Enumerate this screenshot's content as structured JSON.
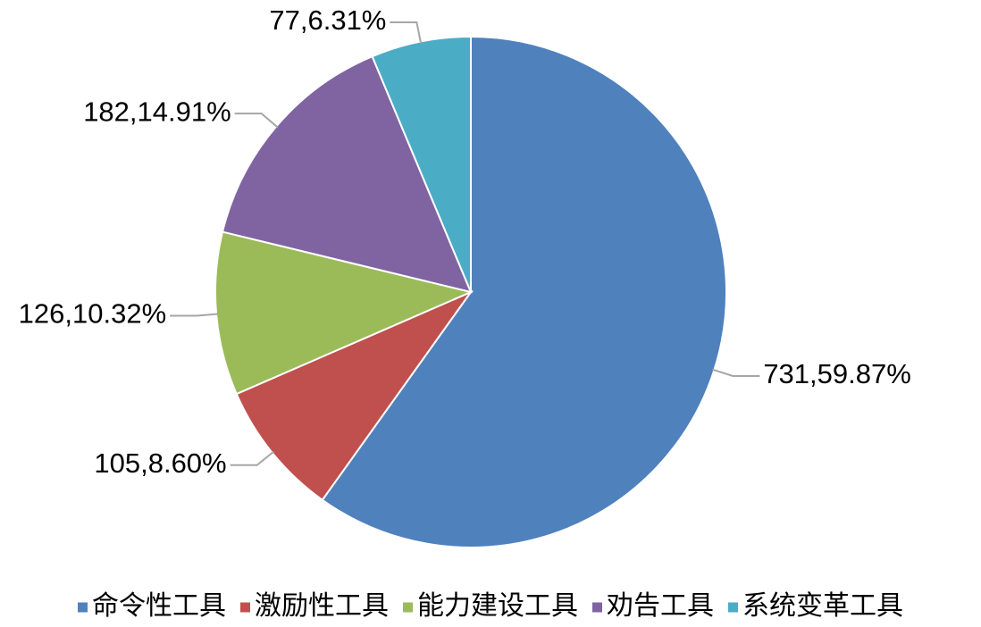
{
  "chart_data": {
    "type": "pie",
    "categories": [
      "命令性工具",
      "激励性工具",
      "能力建设工具",
      "劝告工具",
      "系统变革工具"
    ],
    "values": [
      731,
      105,
      126,
      182,
      77
    ],
    "value_labels": [
      "731,59.87%",
      "105,8.60%",
      "126,10.32%",
      "182,14.91%",
      "77,6.31%"
    ],
    "colors": [
      "#4f81bd",
      "#c0504d",
      "#9bbb59",
      "#8064a2",
      "#4bacc6"
    ],
    "legend": "bottom"
  }
}
